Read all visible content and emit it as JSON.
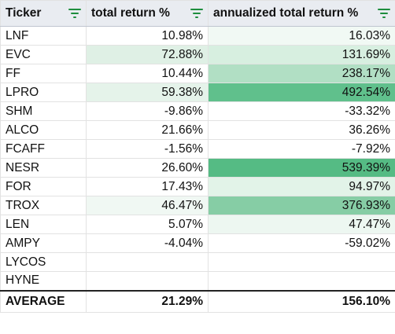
{
  "columns": [
    "Ticker",
    "total return %",
    "annualized total return %"
  ],
  "filter_icon": "filter-icon",
  "rows": [
    {
      "ticker": "LNF",
      "total": "10.98%",
      "annualized": "16.03%",
      "bg_total": "#ffffff",
      "bg_ann": "#f1f9f4"
    },
    {
      "ticker": "EVC",
      "total": "72.88%",
      "annualized": "131.69%",
      "bg_total": "#dff0e5",
      "bg_ann": "#d7efe0"
    },
    {
      "ticker": "FF",
      "total": "10.44%",
      "annualized": "238.17%",
      "bg_total": "#ffffff",
      "bg_ann": "#b1dfc4"
    },
    {
      "ticker": "LPRO",
      "total": "59.38%",
      "annualized": "492.54%",
      "bg_total": "#e5f3ea",
      "bg_ann": "#60c08c"
    },
    {
      "ticker": "SHM",
      "total": "-9.86%",
      "annualized": "-33.32%",
      "bg_total": "#ffffff",
      "bg_ann": "#ffffff"
    },
    {
      "ticker": "ALCO",
      "total": "21.66%",
      "annualized": "36.26%",
      "bg_total": "#ffffff",
      "bg_ann": "#ffffff"
    },
    {
      "ticker": "FCAFF",
      "total": "-1.56%",
      "annualized": "-7.92%",
      "bg_total": "#ffffff",
      "bg_ann": "#ffffff"
    },
    {
      "ticker": "NESR",
      "total": "26.60%",
      "annualized": "539.39%",
      "bg_total": "#ffffff",
      "bg_ann": "#55bb84"
    },
    {
      "ticker": "FOR",
      "total": "17.43%",
      "annualized": "94.97%",
      "bg_total": "#ffffff",
      "bg_ann": "#e2f3e8"
    },
    {
      "ticker": "TROX",
      "total": "46.47%",
      "annualized": "376.93%",
      "bg_total": "#f0f8f3",
      "bg_ann": "#86cda5"
    },
    {
      "ticker": "LEN",
      "total": "5.07%",
      "annualized": "47.47%",
      "bg_total": "#ffffff",
      "bg_ann": "#edf7f1"
    },
    {
      "ticker": "AMPY",
      "total": "-4.04%",
      "annualized": "-59.02%",
      "bg_total": "#ffffff",
      "bg_ann": "#ffffff"
    },
    {
      "ticker": "LYCOS",
      "total": "",
      "annualized": "",
      "bg_total": "#ffffff",
      "bg_ann": "#ffffff"
    },
    {
      "ticker": "HYNE",
      "total": "",
      "annualized": "",
      "bg_total": "#ffffff",
      "bg_ann": "#ffffff"
    }
  ],
  "average": {
    "label": "AVERAGE",
    "total": "21.29%",
    "annualized": "156.10%"
  },
  "colors": {
    "header_bg": "#e9ecf1",
    "filter_icon": "#1e8e3e",
    "grid": "#e2e2e2"
  }
}
